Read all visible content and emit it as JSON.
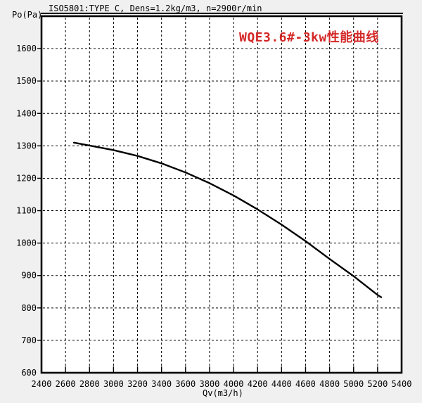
{
  "header": {
    "test_standard": "ISO5801:TYPE C, Dens=1.2kg/m3, n=2900r/min"
  },
  "colors": {
    "title_red": "#d42828",
    "curve": "#000000",
    "background": "#f0f0f0",
    "plot_background": "#ffffff",
    "grid": "#000000"
  },
  "chart_data": {
    "type": "line",
    "title": "WQE3.6#-3kw性能曲线",
    "xlabel": "Qv(m3/h)",
    "ylabel": "Po(Pa)",
    "xlim": [
      2400,
      5400
    ],
    "ylim": [
      600,
      1700
    ],
    "x_ticks": [
      2400,
      2600,
      2800,
      3000,
      3200,
      3400,
      3600,
      3800,
      4000,
      4200,
      4400,
      4600,
      4800,
      5000,
      5200,
      5400
    ],
    "y_ticks": [
      600,
      700,
      800,
      900,
      1000,
      1100,
      1200,
      1300,
      1400,
      1500,
      1600
    ],
    "grid": "dashed",
    "legend_position": "none",
    "series": [
      {
        "name": "WQE3.6#-3kw performance curve",
        "x": [
          2670,
          2800,
          3000,
          3200,
          3400,
          3600,
          3800,
          4000,
          4200,
          4400,
          4600,
          4800,
          5000,
          5200,
          5230
        ],
        "y": [
          1310,
          1301,
          1287,
          1269,
          1246,
          1218,
          1185,
          1147,
          1104,
          1057,
          1006,
          951,
          898,
          840,
          833
        ]
      }
    ]
  }
}
